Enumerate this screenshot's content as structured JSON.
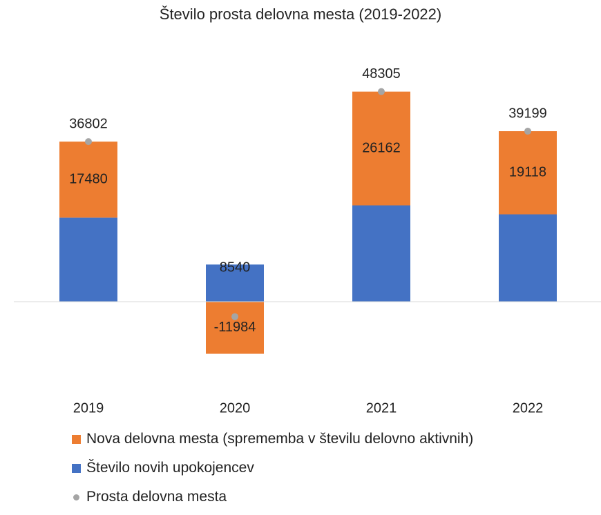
{
  "chart_data": {
    "type": "bar",
    "stacked": true,
    "title": "Število prosta delovna mesta (2019-2022)",
    "categories": [
      "2019",
      "2020",
      "2021",
      "2022"
    ],
    "series": [
      {
        "name": "Število novih upokojencev",
        "color": "#4472C4",
        "values": [
          19322,
          8540,
          22143,
          20081
        ],
        "labels": [
          "",
          "8540",
          "",
          ""
        ]
      },
      {
        "name": "Nova delovna mesta (sprememba v številu delovno aktivnih)",
        "color": "#ED7D31",
        "values": [
          17480,
          -11984,
          26162,
          19118
        ],
        "labels": [
          "17480",
          "-11984",
          "26162",
          "19118"
        ]
      }
    ],
    "points": {
      "name": "Prosta delovna mesta",
      "color": "#A5A5A5",
      "values": [
        36802,
        -3444,
        48305,
        39199
      ],
      "labels": [
        "36802",
        "",
        "48305",
        "39199"
      ]
    },
    "ylim": [
      -15000,
      55000
    ],
    "grid": false,
    "legend_position": "bottom"
  }
}
